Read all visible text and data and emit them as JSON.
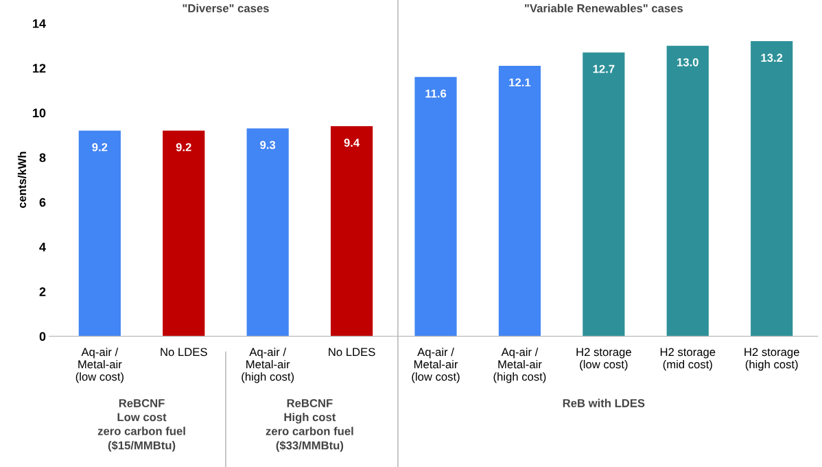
{
  "chart_data": {
    "type": "bar",
    "ylabel": "cents/kWh",
    "categories": [
      "Aq-air /\nMetal-air\n(low cost)",
      "No LDES",
      "Aq-air /\nMetal-air\n(high cost)",
      "No LDES",
      "Aq-air /\nMetal-air\n(low cost)",
      "Aq-air /\nMetal-air\n(high cost)",
      "H2 storage\n(low cost)",
      "H2 storage\n(mid cost)",
      "H2 storage\n(high cost)"
    ],
    "values": [
      9.2,
      9.2,
      9.3,
      9.4,
      11.6,
      12.1,
      12.7,
      13.0,
      13.2
    ],
    "colors": [
      "#4285f4",
      "#c00000",
      "#4285f4",
      "#c00000",
      "#4285f4",
      "#4285f4",
      "#2e9199",
      "#2e9199",
      "#2e9199"
    ],
    "value_labels": [
      "9.2",
      "9.2",
      "9.3",
      "9.4",
      "11.6",
      "12.1",
      "12.7",
      "13.0",
      "13.2"
    ],
    "ylim": [
      0,
      14
    ],
    "yticks": [
      0,
      2,
      4,
      6,
      8,
      10,
      12,
      14
    ],
    "grid": false,
    "legend": false,
    "annotations": [
      "\"Diverse\" cases",
      "\"Variable Renewables\" cases",
      "ReBCNF\nLow cost\nzero carbon fuel\n($15/MMBtu)",
      "ReBCNF\nHigh cost\nzero carbon fuel\n($33/MMBtu)",
      "ReB with LDES"
    ]
  }
}
